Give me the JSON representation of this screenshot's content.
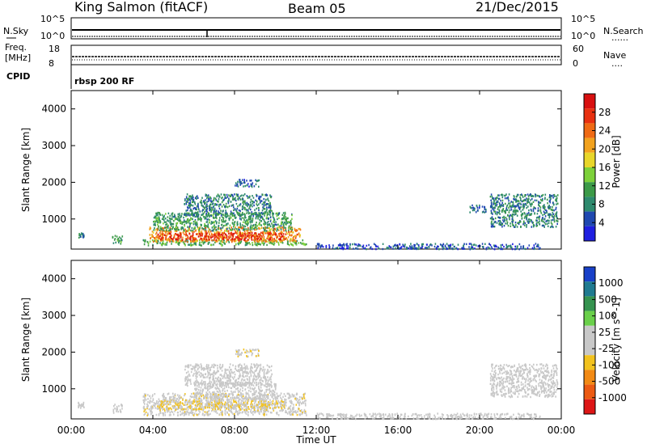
{
  "header": {
    "station": "King Salmon (fitACF)",
    "beam": "Beam 05",
    "date": "21/Dec/2015"
  },
  "strip_labels": {
    "nsky": "N.Sky",
    "freq_line1": "Freq.",
    "freq_line2": "[MHz]",
    "cpid": "CPID",
    "nsearch": "N.Search",
    "nave": "Nave",
    "dots": "......",
    "dots_short": "....",
    "cpid_value": "rbsp 200 RF",
    "noise_ticks_left": [
      "10^5",
      "10^0"
    ],
    "noise_ticks_right": [
      "10^5",
      "10^0"
    ],
    "freq_ticks_left": [
      "18",
      "8"
    ],
    "nave_ticks_right": [
      "60",
      "0"
    ]
  },
  "colors": {
    "power_scale": [
      "#1f1fe0",
      "#1f48b0",
      "#2e8a6e",
      "#3c9a48",
      "#7dd13a",
      "#e8d62a",
      "#f2a21e",
      "#ef6a14",
      "#e83010",
      "#d81010"
    ],
    "velocity_scale": [
      "#1840c8",
      "#1f7a90",
      "#35934f",
      "#6ad04a",
      "#c8c8c8",
      "#c8c8c8",
      "#f2c21e",
      "#f28a14",
      "#ec5a12",
      "#dd1616"
    ]
  },
  "chart_data": [
    {
      "type": "heatmap",
      "name": "power",
      "title": "",
      "xlabel": "Time UT",
      "ylabel": "Slant Range [km]",
      "xlim": [
        0,
        24
      ],
      "ylim": [
        180,
        4500
      ],
      "x_ticks": [
        "00:00",
        "04:00",
        "08:00",
        "12:00",
        "16:00",
        "20:00",
        "00:00"
      ],
      "y_ticks": [
        "1000",
        "2000",
        "3000",
        "4000"
      ],
      "colorbar": {
        "label": "Power [dB]",
        "ticks": [
          "28",
          "24",
          "20",
          "16",
          "12",
          "8",
          "4"
        ]
      },
      "regions": [
        {
          "t": [
            0.3,
            0.6
          ],
          "r": [
            500,
            650
          ],
          "value": 8
        },
        {
          "t": [
            2.0,
            2.5
          ],
          "r": [
            350,
            600
          ],
          "value": 10
        },
        {
          "t": [
            3.5,
            11.5
          ],
          "r": [
            300,
            450
          ],
          "value": 12
        },
        {
          "t": [
            3.8,
            11.2
          ],
          "r": [
            400,
            800
          ],
          "value": 22
        },
        {
          "t": [
            4.2,
            10.5
          ],
          "r": [
            450,
            650
          ],
          "value": 28
        },
        {
          "t": [
            4.0,
            10.8
          ],
          "r": [
            700,
            1200
          ],
          "value": 10
        },
        {
          "t": [
            5.5,
            9.8
          ],
          "r": [
            1100,
            1700
          ],
          "value": 8
        },
        {
          "t": [
            8.0,
            9.2
          ],
          "r": [
            1900,
            2100
          ],
          "value": 6
        },
        {
          "t": [
            12.0,
            15.0
          ],
          "r": [
            200,
            350
          ],
          "value": 4
        },
        {
          "t": [
            15.0,
            23.0
          ],
          "r": [
            200,
            350
          ],
          "value": 5
        },
        {
          "t": [
            20.5,
            23.8
          ],
          "r": [
            800,
            1700
          ],
          "value": 8
        },
        {
          "t": [
            19.5,
            20.3
          ],
          "r": [
            1200,
            1400
          ],
          "value": 6
        }
      ]
    },
    {
      "type": "heatmap",
      "name": "velocity",
      "title": "",
      "xlabel": "Time UT",
      "ylabel": "Slant Range [km]",
      "xlim": [
        0,
        24
      ],
      "ylim": [
        180,
        4500
      ],
      "x_ticks": [
        "00:00",
        "04:00",
        "08:00",
        "12:00",
        "16:00",
        "20:00",
        "00:00"
      ],
      "y_ticks": [
        "1000",
        "2000",
        "3000",
        "4000"
      ],
      "colorbar": {
        "label": "Velocity [m s^-1]",
        "ticks": [
          "1000",
          "500",
          "100",
          "25",
          "-25",
          "-100",
          "-500",
          "-1000"
        ]
      },
      "regions": [
        {
          "t": [
            0.3,
            0.6
          ],
          "r": [
            500,
            650
          ],
          "value": -80
        },
        {
          "t": [
            2.0,
            2.5
          ],
          "r": [
            350,
            600
          ],
          "value": -150
        },
        {
          "t": [
            3.5,
            11.5
          ],
          "r": [
            300,
            900
          ],
          "value": -180
        },
        {
          "t": [
            4.2,
            10.5
          ],
          "r": [
            450,
            700
          ],
          "value": -250
        },
        {
          "t": [
            6.0,
            10.0
          ],
          "r": [
            700,
            1200
          ],
          "value": 0
        },
        {
          "t": [
            5.5,
            9.8
          ],
          "r": [
            1100,
            1700
          ],
          "value": -150
        },
        {
          "t": [
            8.0,
            9.2
          ],
          "r": [
            1900,
            2100
          ],
          "value": -200
        },
        {
          "t": [
            12.0,
            15.0
          ],
          "r": [
            200,
            350
          ],
          "value": 60
        },
        {
          "t": [
            15.0,
            23.0
          ],
          "r": [
            200,
            350
          ],
          "value": 0
        },
        {
          "t": [
            20.5,
            23.8
          ],
          "r": [
            800,
            1700
          ],
          "value": 0
        }
      ]
    }
  ]
}
